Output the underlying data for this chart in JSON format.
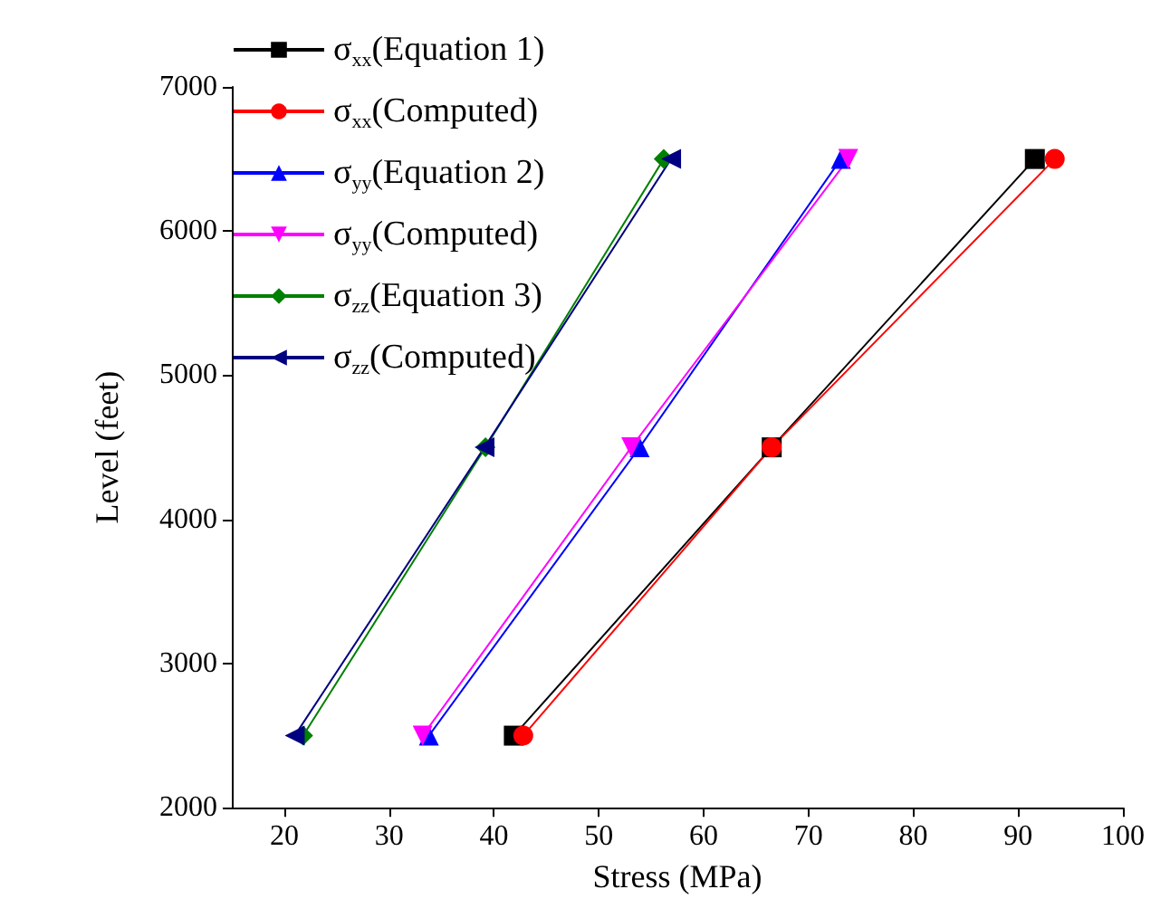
{
  "chart_data": {
    "type": "line",
    "xlabel": "Stress (MPa)",
    "ylabel": "Level (feet)",
    "xlim": [
      15,
      100
    ],
    "xticks": [
      20,
      30,
      40,
      50,
      60,
      70,
      80,
      90,
      100
    ],
    "ylim": [
      2000,
      7000
    ],
    "yticks": [
      2000,
      3000,
      4000,
      5000,
      6000,
      7000
    ],
    "grid": false,
    "legend": "top left",
    "line_style": "solid",
    "series": [
      {
        "name": "σ$_{xx}$(Equation 1)",
        "color": "#000000",
        "marker": "square",
        "x": [
          41.9,
          66.5,
          91.6
        ],
        "values": [
          2500,
          4500,
          6500
        ]
      },
      {
        "name": "σ$_{xx}$(Computed)",
        "color": "#ff0000",
        "marker": "circle",
        "x": [
          42.8,
          66.5,
          93.5
        ],
        "values": [
          2500,
          4500,
          6500
        ]
      },
      {
        "name": "σ$_{yy}$(Equation 2)",
        "color": "#0000ff",
        "marker": "triangle",
        "x": [
          33.8,
          53.9,
          73.1
        ],
        "values": [
          2500,
          4500,
          6500
        ]
      },
      {
        "name": "σ$_{yy}$(Computed)",
        "color": "#ff00ff",
        "marker": "triangle-down",
        "x": [
          33.2,
          53.1,
          73.8
        ],
        "values": [
          2500,
          4500,
          6500
        ]
      },
      {
        "name": "σ$_{zz}$(Equation 3)",
        "color": "#008000",
        "marker": "diamond",
        "x": [
          21.8,
          39.2,
          56.2
        ],
        "values": [
          2500,
          4500,
          6500
        ]
      },
      {
        "name": "σ$_{zz}$(Computed)",
        "color": "#000080",
        "marker": "triangle-left",
        "x": [
          21.0,
          39.1,
          56.9
        ],
        "values": [
          2500,
          4500,
          6500
        ]
      }
    ]
  }
}
